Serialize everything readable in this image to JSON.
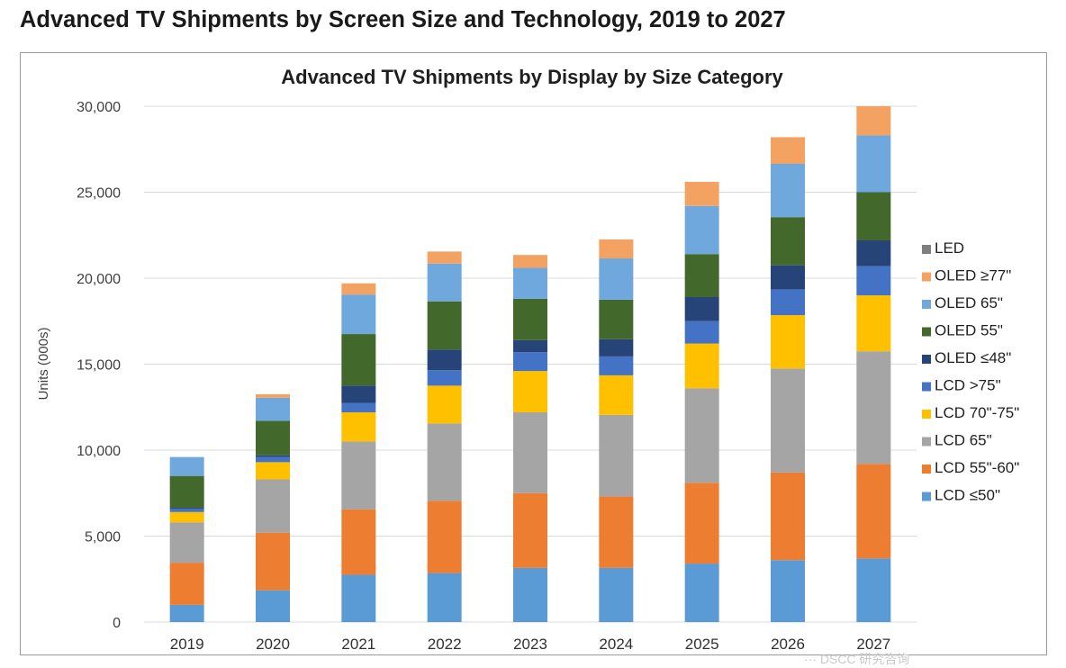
{
  "page_title": "Advanced TV Shipments by Screen Size and Technology, 2019 to 2027",
  "watermark": "··· DSCC 研究咨询",
  "colors": {
    "LCD ≤50\"": "#5b9bd5",
    "LCD 55\"-60\"": "#ed7d31",
    "LCD 65\"": "#a5a5a5",
    "LCD 70\"-75\"": "#ffc000",
    "LCD >75\"": "#4472c4",
    "OLED  ≤48\"": "#264478",
    "OLED 55\"": "#43682b",
    "OLED 65\"": "#6fa8dc",
    "OLED ≥77\"": "#f4a261",
    "LED": "#7f7f7f"
  },
  "chart_data": {
    "type": "bar",
    "stacked": true,
    "title": "Advanced TV Shipments by Display by Size Category",
    "xlabel": "",
    "ylabel": "Units (000s)",
    "ylim": [
      0,
      30000
    ],
    "yticks": [
      0,
      5000,
      10000,
      15000,
      20000,
      25000,
      30000
    ],
    "ytick_labels": [
      "0",
      "5,000",
      "10,000",
      "15,000",
      "20,000",
      "25,000",
      "30,000"
    ],
    "grid": true,
    "legend_position": "right",
    "categories": [
      "2019",
      "2020",
      "2021",
      "2022",
      "2023",
      "2024",
      "2025",
      "2026",
      "2027"
    ],
    "series": [
      {
        "name": "LCD  ≤50\"",
        "color": "#5b9bd5",
        "values": [
          1000,
          1850,
          2750,
          2850,
          3150,
          3150,
          3400,
          3600,
          3700
        ]
      },
      {
        "name": "LCD 55\"-60\"",
        "color": "#ed7d31",
        "values": [
          2450,
          3350,
          3800,
          4200,
          4350,
          4150,
          4700,
          5100,
          5500
        ]
      },
      {
        "name": "LCD 65\"",
        "color": "#a5a5a5",
        "values": [
          2350,
          3100,
          3950,
          4500,
          4700,
          4750,
          5500,
          6050,
          6550
        ]
      },
      {
        "name": "LCD 70\"-75\"",
        "color": "#ffc000",
        "values": [
          600,
          1000,
          1700,
          2200,
          2400,
          2300,
          2600,
          3100,
          3250
        ]
      },
      {
        "name": "LCD >75\"",
        "color": "#4472c4",
        "values": [
          200,
          300,
          550,
          900,
          1100,
          1100,
          1300,
          1500,
          1700
        ]
      },
      {
        "name": "OLED  ≤48\"",
        "color": "#264478",
        "values": [
          50,
          100,
          1000,
          1200,
          700,
          1000,
          1400,
          1400,
          1500
        ]
      },
      {
        "name": "OLED 55\"",
        "color": "#43682b",
        "values": [
          1850,
          2000,
          3000,
          2800,
          2400,
          2300,
          2500,
          2800,
          2800
        ]
      },
      {
        "name": "OLED 65\"",
        "color": "#6fa8dc",
        "values": [
          1100,
          1350,
          2300,
          2200,
          1800,
          2400,
          2800,
          3100,
          3300
        ]
      },
      {
        "name": "OLED ≥77\"",
        "color": "#f4a261",
        "values": [
          0,
          200,
          650,
          700,
          750,
          1100,
          1400,
          1550,
          1700
        ]
      },
      {
        "name": "LED",
        "color": "#7f7f7f",
        "values": [
          0,
          0,
          0,
          0,
          0,
          0,
          0,
          0,
          0
        ]
      }
    ]
  }
}
